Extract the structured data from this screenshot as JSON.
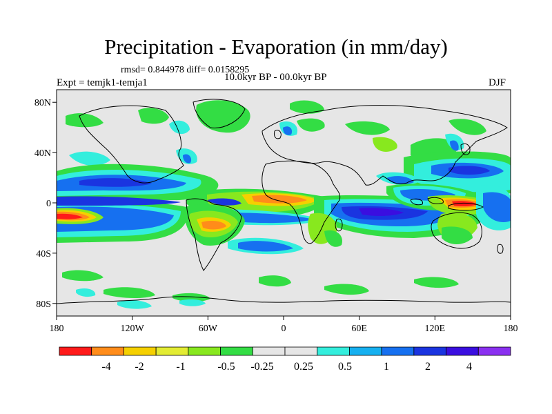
{
  "title": "Precipitation - Evaporation (in mm/day)",
  "stats": {
    "text": "rmsd= 0.844978 diff= 0.0158295"
  },
  "experiment": "Expt = temjk1-temja1",
  "period": "10.0kyr BP - 00.0kyr BP",
  "season": "DJF",
  "axes": {
    "lat_labels": [
      {
        "lat": 80,
        "label": "80N"
      },
      {
        "lat": 40,
        "label": "40N"
      },
      {
        "lat": 0,
        "label": "0"
      },
      {
        "lat": -40,
        "label": "40S"
      },
      {
        "lat": -80,
        "label": "80S"
      }
    ],
    "lon_labels": [
      {
        "lon": -180,
        "label": "180"
      },
      {
        "lon": -120,
        "label": "120W"
      },
      {
        "lon": -60,
        "label": "60W"
      },
      {
        "lon": 0,
        "label": "0"
      },
      {
        "lon": 60,
        "label": "60E"
      },
      {
        "lon": 120,
        "label": "120E"
      },
      {
        "lon": 180,
        "label": "180"
      }
    ]
  },
  "colorbar": {
    "colors": [
      "#ff1a1a",
      "#ff8c1a",
      "#f5d000",
      "#e3ec33",
      "#88e81e",
      "#33dd44",
      "#e6e6e6",
      "#e6e6e6",
      "#33eedd",
      "#16b0f0",
      "#1670f0",
      "#1a34e0",
      "#3a0ee0",
      "#8a30f0"
    ],
    "labels": [
      "-4",
      "-2",
      "-1",
      "-0.5",
      "-0.25",
      "0.25",
      "0.5",
      "1",
      "2",
      "4"
    ]
  },
  "map_colors": {
    "background": "#e6e6e6",
    "red": "#ff1a1a",
    "orange": "#ff8c1a",
    "yellow": "#f5d000",
    "lime": "#88e81e",
    "green": "#33dd44",
    "cyan": "#33eedd",
    "sky": "#16b0f0",
    "blue": "#1670f0",
    "darkblue": "#1a34e0",
    "indigo": "#3a0ee0"
  }
}
